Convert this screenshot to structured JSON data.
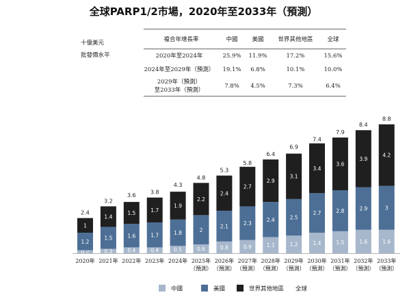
{
  "title": "全球PARP1/2市場，2020年至2033年（預測）",
  "unit_label": [
    "十億美元",
    "批發價水平"
  ],
  "cagr_table": {
    "headers": [
      "複合年增長率",
      "中國",
      "美國",
      "世界其他地區",
      "全球"
    ],
    "rows": [
      {
        "period": [
          "2020年至2024年"
        ],
        "values": [
          "25.9%",
          "11.9%",
          "17.2%",
          "15.6%"
        ]
      },
      {
        "period": [
          "2024年至2029年（預測）"
        ],
        "values": [
          "19.1%",
          "6.8%",
          "10.1%",
          "10.0%"
        ]
      },
      {
        "period": [
          "2029年（預測）",
          "至2033年（預測）"
        ],
        "values": [
          "7.8%",
          "4.5%",
          "7.3%",
          "6.4%"
        ]
      }
    ]
  },
  "chart_data": {
    "type": "bar",
    "stacked": true,
    "categories": [
      [
        "2020年"
      ],
      [
        "2021年"
      ],
      [
        "2022年"
      ],
      [
        "2023年"
      ],
      [
        "2024年"
      ],
      [
        "2025年",
        "（預測）"
      ],
      [
        "2026年",
        "（預測）"
      ],
      [
        "2027年",
        "（預測）"
      ],
      [
        "2028年",
        "（預測）"
      ],
      [
        "2029年",
        "（預測）"
      ],
      [
        "2030年",
        "（預測）"
      ],
      [
        "2031年",
        "（預測）"
      ],
      [
        "2032年",
        "（預測）"
      ],
      [
        "2033年",
        "（預測）"
      ]
    ],
    "series": [
      {
        "name": "中國",
        "color": "#a7b7cc",
        "values": [
          0.2,
          0.3,
          0.4,
          0.4,
          0.5,
          0.6,
          0.8,
          0.9,
          1.1,
          1.2,
          1.4,
          1.5,
          1.6,
          1.6
        ]
      },
      {
        "name": "美國",
        "color": "#4d6f96",
        "values": [
          1.2,
          1.5,
          1.6,
          1.7,
          1.8,
          2.0,
          2.1,
          2.3,
          2.4,
          2.5,
          2.7,
          2.8,
          2.9,
          3.0
        ]
      },
      {
        "name": "世界其他地區",
        "color": "#1f1f1f",
        "values": [
          1.0,
          1.4,
          1.5,
          1.7,
          1.9,
          2.2,
          2.4,
          2.7,
          2.9,
          3.1,
          3.4,
          3.6,
          3.9,
          4.2
        ]
      }
    ],
    "totals": [
      2.4,
      3.2,
      3.6,
      3.8,
      4.3,
      4.8,
      5.3,
      5.8,
      6.4,
      6.9,
      7.4,
      7.9,
      8.4,
      8.8
    ],
    "legend": [
      "中國",
      "美國",
      "世界其他地區",
      "全球"
    ],
    "legend_position": "bottom",
    "grid": false,
    "ylim": [
      0,
      8.8
    ]
  }
}
